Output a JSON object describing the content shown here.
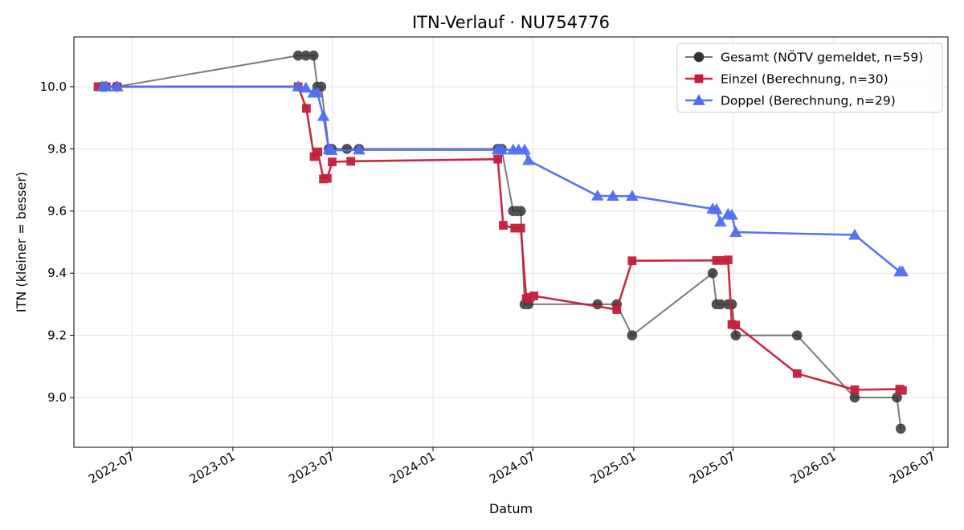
{
  "chart_data": {
    "type": "line",
    "title": "ITN-Verlauf · NU754776",
    "xlabel": "Datum",
    "ylabel": "ITN  (kleiner = besser)",
    "x_axis": "date",
    "xlim": [
      "2022-03-17",
      "2026-07-28"
    ],
    "ylim": [
      8.84,
      10.16
    ],
    "x_ticks": [
      "2022-07",
      "2023-01",
      "2023-07",
      "2024-01",
      "2024-07",
      "2025-01",
      "2025-07",
      "2026-01",
      "2026-07"
    ],
    "y_ticks": [
      "9.0",
      "9.2",
      "9.4",
      "9.6",
      "9.8",
      "10.0"
    ],
    "grid": true,
    "legend_position": "top-right",
    "series": [
      {
        "name": "Gesamt (NÖTV gemeldet, n=59)",
        "color": "#333333",
        "marker": "circle",
        "points": [
          {
            "x": "2022-05-08",
            "y": 10.0
          },
          {
            "x": "2022-05-13",
            "y": 10.0
          },
          {
            "x": "2022-06-03",
            "y": 10.0
          },
          {
            "x": "2023-04-30",
            "y": 10.1
          },
          {
            "x": "2023-05-14",
            "y": 10.1
          },
          {
            "x": "2023-05-28",
            "y": 10.1
          },
          {
            "x": "2023-06-04",
            "y": 10.0
          },
          {
            "x": "2023-06-11",
            "y": 10.0
          },
          {
            "x": "2023-06-25",
            "y": 9.8
          },
          {
            "x": "2023-06-30",
            "y": 9.8
          },
          {
            "x": "2023-07-28",
            "y": 9.8
          },
          {
            "x": "2023-08-19",
            "y": 9.8
          },
          {
            "x": "2024-04-28",
            "y": 9.8
          },
          {
            "x": "2024-05-05",
            "y": 9.8
          },
          {
            "x": "2024-05-26",
            "y": 9.6
          },
          {
            "x": "2024-06-02",
            "y": 9.6
          },
          {
            "x": "2024-06-09",
            "y": 9.6
          },
          {
            "x": "2024-06-16",
            "y": 9.3
          },
          {
            "x": "2024-06-23",
            "y": 9.3
          },
          {
            "x": "2024-10-27",
            "y": 9.3
          },
          {
            "x": "2024-12-01",
            "y": 9.3
          },
          {
            "x": "2024-12-29",
            "y": 9.2
          },
          {
            "x": "2025-05-25",
            "y": 9.4
          },
          {
            "x": "2025-06-01",
            "y": 9.3
          },
          {
            "x": "2025-06-08",
            "y": 9.3
          },
          {
            "x": "2025-06-22",
            "y": 9.3
          },
          {
            "x": "2025-06-29",
            "y": 9.3
          },
          {
            "x": "2025-07-06",
            "y": 9.2
          },
          {
            "x": "2025-10-26",
            "y": 9.2
          },
          {
            "x": "2026-02-08",
            "y": 9.0
          },
          {
            "x": "2026-04-26",
            "y": 9.0
          },
          {
            "x": "2026-05-03",
            "y": 8.9
          }
        ]
      },
      {
        "name": "Einzel (Berechnung, n=30)",
        "color": "#c41e3a",
        "marker": "square",
        "points": [
          {
            "x": "2022-04-30",
            "y": 10.0
          },
          {
            "x": "2022-05-15",
            "y": 10.0
          },
          {
            "x": "2022-06-04",
            "y": 10.0
          },
          {
            "x": "2023-04-30",
            "y": 10.0
          },
          {
            "x": "2023-05-15",
            "y": 9.93
          },
          {
            "x": "2023-05-29",
            "y": 9.775
          },
          {
            "x": "2023-06-05",
            "y": 9.79
          },
          {
            "x": "2023-06-15",
            "y": 9.703
          },
          {
            "x": "2023-06-22",
            "y": 9.705
          },
          {
            "x": "2023-07-01",
            "y": 9.758
          },
          {
            "x": "2023-08-04",
            "y": 9.76
          },
          {
            "x": "2024-04-28",
            "y": 9.767
          },
          {
            "x": "2024-05-08",
            "y": 9.554
          },
          {
            "x": "2024-05-29",
            "y": 9.545
          },
          {
            "x": "2024-06-09",
            "y": 9.545
          },
          {
            "x": "2024-06-19",
            "y": 9.318
          },
          {
            "x": "2024-06-26",
            "y": 9.322
          },
          {
            "x": "2024-07-03",
            "y": 9.327
          },
          {
            "x": "2024-12-01",
            "y": 9.283
          },
          {
            "x": "2024-12-29",
            "y": 9.44
          },
          {
            "x": "2025-06-01",
            "y": 9.441
          },
          {
            "x": "2025-06-15",
            "y": 9.441
          },
          {
            "x": "2025-06-22",
            "y": 9.443
          },
          {
            "x": "2025-06-29",
            "y": 9.235
          },
          {
            "x": "2025-07-06",
            "y": 9.233
          },
          {
            "x": "2025-10-26",
            "y": 9.077
          },
          {
            "x": "2026-02-08",
            "y": 9.025
          },
          {
            "x": "2026-05-01",
            "y": 9.027
          },
          {
            "x": "2026-05-06",
            "y": 9.023
          }
        ]
      },
      {
        "name": "Doppel (Berechnung, n=29)",
        "color": "#4f6ff0",
        "marker": "triangle",
        "points": [
          {
            "x": "2022-05-08",
            "y": 10.0
          },
          {
            "x": "2022-05-15",
            "y": 10.0
          },
          {
            "x": "2022-06-04",
            "y": 10.0
          },
          {
            "x": "2023-04-30",
            "y": 10.0
          },
          {
            "x": "2023-05-14",
            "y": 9.996
          },
          {
            "x": "2023-05-28",
            "y": 9.98
          },
          {
            "x": "2023-06-04",
            "y": 9.98
          },
          {
            "x": "2023-06-15",
            "y": 9.905
          },
          {
            "x": "2023-06-25",
            "y": 9.798
          },
          {
            "x": "2023-06-30",
            "y": 9.795
          },
          {
            "x": "2023-08-19",
            "y": 9.797
          },
          {
            "x": "2024-04-28",
            "y": 9.797
          },
          {
            "x": "2024-05-05",
            "y": 9.797
          },
          {
            "x": "2024-05-26",
            "y": 9.797
          },
          {
            "x": "2024-06-05",
            "y": 9.797
          },
          {
            "x": "2024-06-16",
            "y": 9.797
          },
          {
            "x": "2024-06-23",
            "y": 9.763
          },
          {
            "x": "2024-10-27",
            "y": 9.649
          },
          {
            "x": "2024-11-24",
            "y": 9.648
          },
          {
            "x": "2024-12-29",
            "y": 9.648
          },
          {
            "x": "2025-05-25",
            "y": 9.607
          },
          {
            "x": "2025-06-01",
            "y": 9.605
          },
          {
            "x": "2025-06-08",
            "y": 9.565
          },
          {
            "x": "2025-06-22",
            "y": 9.59
          },
          {
            "x": "2025-06-29",
            "y": 9.587
          },
          {
            "x": "2025-07-06",
            "y": 9.532
          },
          {
            "x": "2026-02-08",
            "y": 9.523
          },
          {
            "x": "2026-05-01",
            "y": 9.405
          },
          {
            "x": "2026-05-06",
            "y": 9.405
          }
        ]
      }
    ]
  }
}
